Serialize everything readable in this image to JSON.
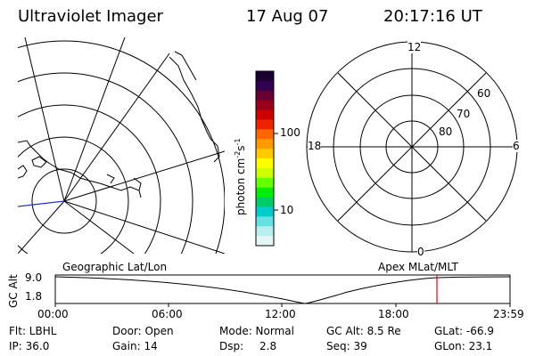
{
  "header": {
    "instrument": "Ultraviolet Imager",
    "date": "17 Aug 07",
    "time": "20:17:16 UT"
  },
  "left_map": {
    "label": "Geographic Lat/Lon"
  },
  "colorbar": {
    "label_main": "photon cm",
    "label_sup1": "-2",
    "label_mid": "s",
    "label_sup2": "-1",
    "tick_100": "100",
    "tick_10": "10",
    "colors_top_to_bottom": [
      "#1a0030",
      "#33004f",
      "#660033",
      "#99001a",
      "#cc0000",
      "#ee2200",
      "#ff6600",
      "#ff9900",
      "#ffcc00",
      "#ffff00",
      "#ccff00",
      "#66ff00",
      "#00ee00",
      "#00cc66",
      "#00cccc",
      "#66e0e0",
      "#b8eeee",
      "#e6f6f6"
    ]
  },
  "polar_plot": {
    "label": "Apex MLat/MLT",
    "mlt_12": "12",
    "mlt_18": "18",
    "mlt_6": "6",
    "mlt_0": "0",
    "lat_60": "60",
    "lat_70": "70",
    "lat_80": "80"
  },
  "timeline": {
    "ylabel": "GC Alt",
    "y_top": "9.0",
    "y_bottom": "1.8",
    "x_ticks": [
      "00:00",
      "06:00",
      "12:00",
      "18:00",
      "23:59"
    ],
    "current_marker_color": "#ff0000"
  },
  "status": {
    "row1": {
      "flt": "Flt: LBHL",
      "door": "Door: Open",
      "mode": "Mode: Normal",
      "gc_alt": "GC Alt: 8.5 Re",
      "glat": "GLat: -66.9"
    },
    "row2": {
      "ip": "IP: 36.0",
      "gain": "Gain: 14",
      "dsp_label": "Dsp:",
      "dsp_value": "2.8",
      "seq": "Seq: 39",
      "glon": "GLon: 23.1"
    }
  }
}
